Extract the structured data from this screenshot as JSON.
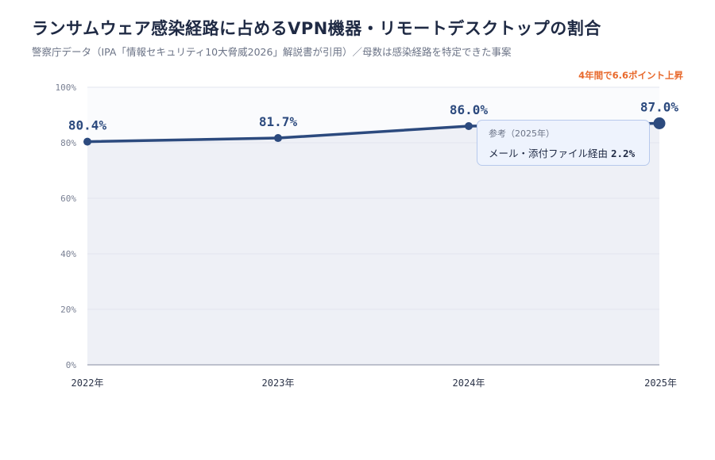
{
  "header": {
    "title": "ランサムウェア感染経路に占めるVPN機器・リモートデスクトップの割合",
    "subtitle": "警察庁データ（IPA「情報セキュリティ10大脅威2026」解説書が引用）／母数は感染経路を特定できた事案"
  },
  "annotation": "4年間で6.6ポイント上昇",
  "chart_data": {
    "type": "area",
    "title": "ランサムウェア感染経路に占めるVPN機器・リモートデスクトップの割合",
    "subtitle": "警察庁データ（IPA「情報セキュリティ10大脅威2026」解説書が引用）／母数は感染経路を特定できた事案",
    "x": [
      "2022年",
      "2023年",
      "2024年",
      "2025年"
    ],
    "values": [
      80.4,
      81.7,
      86.0,
      87.0
    ],
    "data_labels": [
      "80.4%",
      "81.7%",
      "86.0%",
      "87.0%"
    ],
    "ylim": [
      0,
      100
    ],
    "yticks": [
      0,
      20,
      40,
      60,
      80,
      100
    ],
    "ytick_labels": [
      "0%",
      "20%",
      "40%",
      "60%",
      "80%",
      "100%"
    ],
    "grid": true,
    "colors": {
      "line": "#2c4a7e",
      "area": "#eef0f6",
      "grid": "#e2e5ee",
      "accent": "#e8692c"
    }
  },
  "callout": {
    "title": "参考（2025年）",
    "label": "メール・添付ファイル経由",
    "value": "2.2%"
  }
}
